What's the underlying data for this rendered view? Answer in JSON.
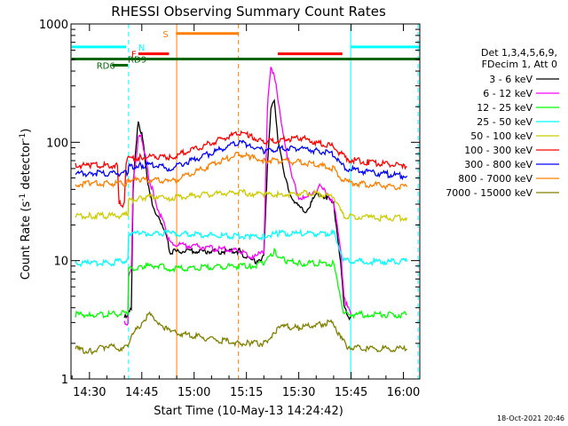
{
  "chart_data": {
    "type": "line",
    "title": "RHESSI Observing Summary Count Rates",
    "xlabel": "Start Time (10-May-13 14:24:42)",
    "ylabel_main": "Count Rate (s",
    "ylabel_sup": "-1",
    "ylabel_end": " detector",
    "ylabel_sup2": "-1",
    "ylabel_close": ")",
    "x_ticks": [
      "14:30",
      "14:45",
      "15:00",
      "15:15",
      "15:30",
      "15:45",
      "16:00"
    ],
    "x_tick_minutes": [
      30,
      45,
      60,
      75,
      90,
      105,
      120
    ],
    "xlim_minutes": [
      24.7,
      124.7
    ],
    "y_ticks": [
      "1",
      "10",
      "100",
      "1000"
    ],
    "y_tick_values": [
      1,
      10,
      100,
      1000
    ],
    "ylim": [
      1,
      1000
    ],
    "y_scale": "log",
    "grid": false,
    "legend_header": [
      "Det 1,3,4,5,6,9,",
      "FDecim 1, Att 0"
    ],
    "series": [
      {
        "name": "3 - 6 keV",
        "color": "#000000",
        "points": [
          [
            40,
            3.3
          ],
          [
            41,
            3.3
          ],
          [
            41.2,
            4
          ],
          [
            42,
            3.8
          ],
          [
            42.5,
            40
          ],
          [
            43,
            70
          ],
          [
            44,
            150
          ],
          [
            45,
            120
          ],
          [
            46,
            70
          ],
          [
            47,
            40
          ],
          [
            48,
            30
          ],
          [
            49,
            25
          ],
          [
            50,
            22
          ],
          [
            51,
            20
          ],
          [
            52,
            16
          ],
          [
            53,
            12
          ],
          [
            73,
            12
          ],
          [
            74,
            11
          ],
          [
            76,
            10
          ],
          [
            78,
            10
          ],
          [
            80,
            11
          ],
          [
            81,
            60
          ],
          [
            82,
            200
          ],
          [
            83,
            220
          ],
          [
            84,
            110
          ],
          [
            86,
            50
          ],
          [
            88,
            35
          ],
          [
            90,
            28
          ],
          [
            92,
            26
          ],
          [
            94,
            32
          ],
          [
            96,
            38
          ],
          [
            98,
            34
          ],
          [
            100,
            30
          ],
          [
            102,
            10
          ],
          [
            103,
            4
          ],
          [
            104,
            3.5
          ],
          [
            105,
            3.3
          ]
        ]
      },
      {
        "name": "6 - 12 keV",
        "color": "#ff00ff",
        "points": [
          [
            40,
            3
          ],
          [
            41,
            3
          ],
          [
            41.2,
            7
          ],
          [
            42,
            9
          ],
          [
            42.5,
            45
          ],
          [
            43,
            60
          ],
          [
            44,
            110
          ],
          [
            45,
            110
          ],
          [
            46,
            75
          ],
          [
            47,
            50
          ],
          [
            48,
            40
          ],
          [
            49,
            30
          ],
          [
            50,
            26
          ],
          [
            51,
            22
          ],
          [
            52,
            18
          ],
          [
            53,
            14
          ],
          [
            73,
            12
          ],
          [
            74,
            12
          ],
          [
            76,
            11
          ],
          [
            78,
            11
          ],
          [
            80,
            12
          ],
          [
            81,
            200
          ],
          [
            82,
            420
          ],
          [
            83,
            380
          ],
          [
            84,
            230
          ],
          [
            86,
            100
          ],
          [
            88,
            50
          ],
          [
            90,
            35
          ],
          [
            92,
            33
          ],
          [
            94,
            38
          ],
          [
            96,
            42
          ],
          [
            98,
            37
          ],
          [
            100,
            32
          ],
          [
            102,
            12
          ],
          [
            103,
            5
          ],
          [
            104,
            4
          ],
          [
            105,
            3.5
          ]
        ]
      },
      {
        "name": "12 - 25 keV",
        "color": "#00ff00",
        "points": [
          [
            26,
            3.5
          ],
          [
            30,
            3.5
          ],
          [
            35,
            3.5
          ],
          [
            40,
            3.6
          ],
          [
            41,
            3.7
          ],
          [
            41.2,
            8.5
          ],
          [
            45,
            9
          ],
          [
            50,
            9
          ],
          [
            53,
            8.5
          ],
          [
            73,
            9
          ],
          [
            76,
            9
          ],
          [
            80,
            9.5
          ],
          [
            83,
            12
          ],
          [
            86,
            10
          ],
          [
            90,
            9.5
          ],
          [
            95,
            9.5
          ],
          [
            100,
            9.5
          ],
          [
            102,
            5
          ],
          [
            103,
            3.5
          ],
          [
            110,
            3.5
          ],
          [
            120,
            3.5
          ],
          [
            121,
            3.5
          ]
        ]
      },
      {
        "name": "25 - 50 keV",
        "color": "#00ffff",
        "points": [
          [
            26,
            9.5
          ],
          [
            30,
            9.5
          ],
          [
            35,
            9.5
          ],
          [
            40,
            10
          ],
          [
            41,
            10
          ],
          [
            41.2,
            17
          ],
          [
            45,
            17
          ],
          [
            50,
            17
          ],
          [
            53,
            17
          ],
          [
            73,
            16
          ],
          [
            76,
            16
          ],
          [
            80,
            16
          ],
          [
            84,
            17
          ],
          [
            90,
            17
          ],
          [
            95,
            17
          ],
          [
            100,
            17
          ],
          [
            102,
            12
          ],
          [
            103,
            10
          ],
          [
            110,
            9.8
          ],
          [
            120,
            9.8
          ],
          [
            121,
            9.8
          ]
        ]
      },
      {
        "name": "50 - 100 keV",
        "color": "#cccc00",
        "points": [
          [
            26,
            24
          ],
          [
            30,
            24
          ],
          [
            35,
            24
          ],
          [
            40,
            24
          ],
          [
            41,
            25
          ],
          [
            41.2,
            32
          ],
          [
            45,
            34
          ],
          [
            50,
            35
          ],
          [
            53,
            34
          ],
          [
            73,
            38
          ],
          [
            76,
            37
          ],
          [
            80,
            36
          ],
          [
            85,
            36
          ],
          [
            90,
            37
          ],
          [
            95,
            37
          ],
          [
            100,
            35
          ],
          [
            102,
            26
          ],
          [
            103,
            24
          ],
          [
            110,
            23
          ],
          [
            120,
            23
          ],
          [
            121,
            23
          ]
        ]
      },
      {
        "name": "100 - 300 keV",
        "color": "#ff0000",
        "points": [
          [
            26,
            64
          ],
          [
            30,
            64
          ],
          [
            35,
            64
          ],
          [
            38,
            64
          ],
          [
            38.5,
            30
          ],
          [
            39,
            30
          ],
          [
            40,
            30
          ],
          [
            40.5,
            70
          ],
          [
            41,
            72
          ],
          [
            45,
            75
          ],
          [
            50,
            76
          ],
          [
            53,
            74
          ],
          [
            73,
            120
          ],
          [
            76,
            115
          ],
          [
            80,
            100
          ],
          [
            85,
            105
          ],
          [
            90,
            110
          ],
          [
            95,
            100
          ],
          [
            100,
            92
          ],
          [
            102,
            80
          ],
          [
            104,
            72
          ],
          [
            110,
            68
          ],
          [
            120,
            63
          ],
          [
            121,
            62
          ]
        ]
      },
      {
        "name": "300 - 800 keV",
        "color": "#0000ff",
        "points": [
          [
            26,
            54
          ],
          [
            30,
            55
          ],
          [
            35,
            55
          ],
          [
            40,
            55
          ],
          [
            41,
            56
          ],
          [
            41.2,
            62
          ],
          [
            45,
            64
          ],
          [
            50,
            64
          ],
          [
            53,
            60
          ],
          [
            73,
            100
          ],
          [
            76,
            95
          ],
          [
            80,
            85
          ],
          [
            85,
            88
          ],
          [
            90,
            90
          ],
          [
            95,
            85
          ],
          [
            100,
            80
          ],
          [
            102,
            65
          ],
          [
            104,
            60
          ],
          [
            110,
            56
          ],
          [
            120,
            52
          ],
          [
            121,
            52
          ]
        ]
      },
      {
        "name": "800 - 7000 keV",
        "color": "#ff8000",
        "points": [
          [
            26,
            44
          ],
          [
            30,
            45
          ],
          [
            35,
            45
          ],
          [
            40,
            45
          ],
          [
            41,
            46
          ],
          [
            41.2,
            48
          ],
          [
            45,
            48
          ],
          [
            50,
            48
          ],
          [
            53,
            46
          ],
          [
            73,
            80
          ],
          [
            76,
            75
          ],
          [
            80,
            70
          ],
          [
            85,
            70
          ],
          [
            90,
            68
          ],
          [
            95,
            65
          ],
          [
            100,
            60
          ],
          [
            102,
            50
          ],
          [
            104,
            46
          ],
          [
            110,
            44
          ],
          [
            120,
            42
          ],
          [
            121,
            42
          ]
        ]
      },
      {
        "name": "7000 - 15000 keV",
        "color": "#808000",
        "points": [
          [
            26,
            1.8
          ],
          [
            30,
            1.7
          ],
          [
            35,
            1.9
          ],
          [
            40,
            1.8
          ],
          [
            41,
            2
          ],
          [
            43,
            2.5
          ],
          [
            45,
            3
          ],
          [
            47,
            3.5
          ],
          [
            50,
            3
          ],
          [
            53,
            2.5
          ],
          [
            73,
            2
          ],
          [
            76,
            2
          ],
          [
            80,
            2
          ],
          [
            83,
            2.5
          ],
          [
            86,
            2.8
          ],
          [
            90,
            2.7
          ],
          [
            95,
            2.9
          ],
          [
            100,
            3
          ],
          [
            102,
            2.2
          ],
          [
            104,
            1.9
          ],
          [
            110,
            1.8
          ],
          [
            120,
            1.8
          ],
          [
            121,
            1.8
          ]
        ]
      }
    ],
    "bars": [
      {
        "label": "N",
        "color": "#00ffff",
        "x0": 24.9,
        "x1": 40.5,
        "y": 640,
        "label_x": 44
      },
      {
        "label": "",
        "color": "#00ffff",
        "x0": 105,
        "x1": 124.7,
        "y": 640
      },
      {
        "label": "F",
        "color": "#ff0000",
        "x0": 44,
        "x1": 52.8,
        "y": 560,
        "label_x": 42
      },
      {
        "label": "",
        "color": "#ff0000",
        "x0": 84,
        "x1": 102.5,
        "y": 560
      },
      {
        "label": "S",
        "color": "#ff8000",
        "x0": 54.8,
        "x1": 72.7,
        "y": 830,
        "label_x": 51
      },
      {
        "label": "RD9",
        "color": "#006400",
        "x0": 24.9,
        "x1": 124.7,
        "y": 505,
        "label_x": 41
      },
      {
        "label": "RD6",
        "color": "#006400",
        "x0": 36.5,
        "x1": 41,
        "y": 448,
        "label_x": 32
      }
    ],
    "vlines": [
      {
        "x": 41.2,
        "color": "#00ffff",
        "style": "dashed"
      },
      {
        "x": 55.0,
        "color": "#ff8000",
        "style": "solid"
      },
      {
        "x": 72.7,
        "color": "#ff8000",
        "style": "dashed"
      },
      {
        "x": 104.9,
        "color": "#00ffff",
        "style": "solid"
      },
      {
        "x": 124.2,
        "color": "#00ffff",
        "style": "dashed"
      }
    ],
    "timestamp": "18-Oct-2021 20:46"
  }
}
